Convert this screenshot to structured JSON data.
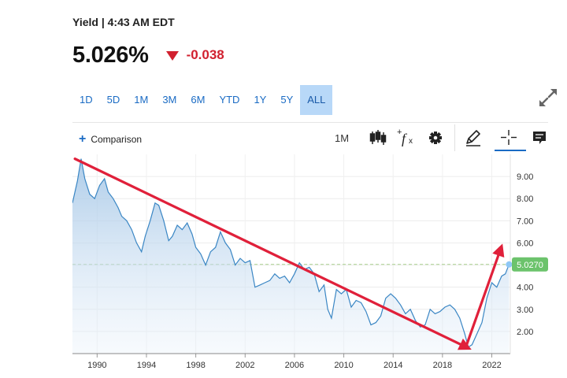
{
  "header": {
    "title": "Yield | 4:43 AM EDT",
    "price": "5.026%",
    "change": "-0.038"
  },
  "ranges": [
    {
      "label": "1D",
      "active": false
    },
    {
      "label": "5D",
      "active": false
    },
    {
      "label": "1M",
      "active": false
    },
    {
      "label": "3M",
      "active": false
    },
    {
      "label": "6M",
      "active": false
    },
    {
      "label": "YTD",
      "active": false
    },
    {
      "label": "1Y",
      "active": false
    },
    {
      "label": "5Y",
      "active": false
    },
    {
      "label": "ALL",
      "active": true
    }
  ],
  "toolbar": {
    "comparison_label": "Comparison",
    "interval_label": "1M",
    "icons": [
      "candlestick-icon",
      "function-icon",
      "gear-icon",
      "draw-pen-icon",
      "crosshair-icon",
      "comment-icon",
      "expand-icon"
    ]
  },
  "colors": {
    "accent": "#1a6bc4",
    "negative": "#d1202f",
    "line": "#3a86c4",
    "current_badge": "#6cc36c",
    "arrows": "#e0203a"
  },
  "chart_data": {
    "type": "area",
    "x_ticks": [
      "1990",
      "1994",
      "1998",
      "2002",
      "2006",
      "2010",
      "2014",
      "2018",
      "2022"
    ],
    "y_ticks": [
      "2.00",
      "3.00",
      "4.00",
      "5.00",
      "6.00",
      "7.00",
      "8.00",
      "9.00"
    ],
    "xlim": [
      1988,
      2023.5
    ],
    "ylim": [
      1.0,
      10.0
    ],
    "current_value_label": "5.0270",
    "current_value": 5.027,
    "series": [
      {
        "x": [
          1988.0,
          1988.4,
          1988.7,
          1989.0,
          1989.4,
          1989.8,
          1990.2,
          1990.6,
          1990.9,
          1991.3,
          1991.7,
          1992.0,
          1992.4,
          1992.8,
          1993.2,
          1993.6,
          1993.9,
          1994.3,
          1994.7,
          1995.0,
          1995.4,
          1995.8,
          1996.1,
          1996.5,
          1996.9,
          1997.3,
          1997.7,
          1998.0,
          1998.4,
          1998.8,
          1999.2,
          1999.6,
          2000.0,
          2000.4,
          2000.8,
          2001.2,
          2001.6,
          2002.0,
          2002.4,
          2002.8,
          2003.2,
          2003.6,
          2004.0,
          2004.4,
          2004.8,
          2005.2,
          2005.6,
          2006.0,
          2006.4,
          2006.8,
          2007.2,
          2007.6,
          2008.0,
          2008.4,
          2008.7,
          2009.0,
          2009.4,
          2009.8,
          2010.2,
          2010.6,
          2011.0,
          2011.4,
          2011.8,
          2012.2,
          2012.6,
          2013.0,
          2013.4,
          2013.8,
          2014.2,
          2014.6,
          2015.0,
          2015.4,
          2015.8,
          2016.2,
          2016.6,
          2017.0,
          2017.4,
          2017.8,
          2018.2,
          2018.6,
          2019.0,
          2019.4,
          2019.8,
          2020.1,
          2020.4,
          2020.8,
          2021.2,
          2021.6,
          2022.0,
          2022.4,
          2022.8,
          2023.1,
          2023.4
        ],
        "values": [
          7.8,
          8.8,
          9.8,
          8.9,
          8.2,
          8.0,
          8.6,
          8.9,
          8.3,
          8.0,
          7.6,
          7.2,
          7.0,
          6.6,
          6.0,
          5.6,
          6.3,
          7.0,
          7.8,
          7.7,
          7.0,
          6.1,
          6.3,
          6.8,
          6.6,
          6.9,
          6.4,
          5.8,
          5.5,
          5.0,
          5.6,
          5.8,
          6.5,
          6.0,
          5.7,
          5.0,
          5.3,
          5.1,
          5.2,
          4.0,
          4.1,
          4.2,
          4.3,
          4.6,
          4.4,
          4.5,
          4.2,
          4.6,
          5.1,
          4.8,
          4.9,
          4.6,
          3.8,
          4.1,
          3.0,
          2.6,
          3.9,
          3.7,
          3.9,
          3.1,
          3.4,
          3.3,
          2.9,
          2.3,
          2.4,
          2.7,
          3.5,
          3.7,
          3.5,
          3.2,
          2.8,
          3.0,
          2.5,
          2.2,
          2.3,
          3.0,
          2.8,
          2.9,
          3.1,
          3.2,
          3.0,
          2.6,
          1.9,
          1.3,
          1.4,
          1.9,
          2.4,
          3.5,
          4.2,
          4.0,
          4.5,
          4.6,
          5.03
        ]
      }
    ]
  }
}
